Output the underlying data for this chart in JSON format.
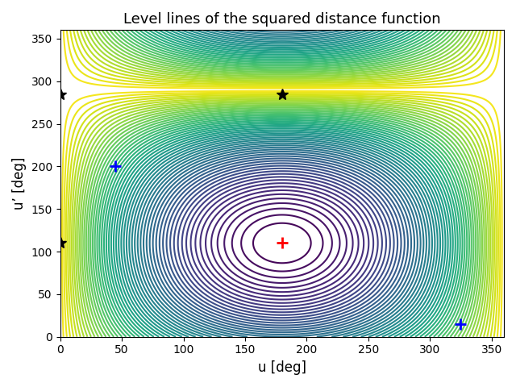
{
  "title": "Level lines of the squared distance function",
  "xlabel": "u [deg]",
  "ylabel": "u’ [deg]",
  "xlim": [
    0,
    360
  ],
  "ylim": [
    0,
    360
  ],
  "xticks": [
    0,
    50,
    100,
    150,
    200,
    250,
    300,
    350
  ],
  "yticks": [
    0,
    50,
    100,
    150,
    200,
    250,
    300,
    350
  ],
  "min_point_u": 180,
  "min_point_up": 110,
  "saddle_point": [
    180,
    285
  ],
  "star_points": [
    [
      0,
      285
    ],
    [
      0,
      110
    ]
  ],
  "blue_plus_points": [
    [
      45,
      200
    ],
    [
      325,
      15
    ]
  ],
  "red_plus_point": [
    180,
    110
  ],
  "n_levels": 60,
  "colormap": "viridis",
  "figsize": [
    6.4,
    4.8
  ],
  "dpi": 100
}
